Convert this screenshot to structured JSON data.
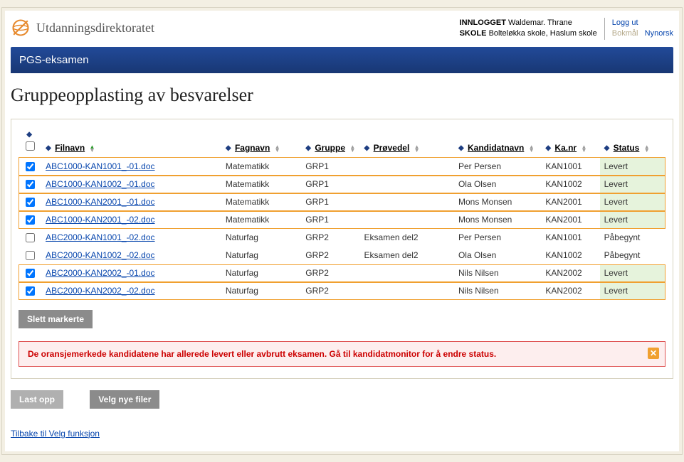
{
  "brand": "Utdanningsdirektoratet",
  "header": {
    "logged_in_label": "INNLOGGET",
    "user_name": "Waldemar. Thrane",
    "school_label": "SKOLE",
    "school_name": "Bolteløkka skole, Haslum skole",
    "logout": "Logg ut",
    "lang_active": "Bokmål",
    "lang_other": "Nynorsk"
  },
  "appbar_title": "PGS-eksamen",
  "page_title": "Gruppeopplasting av besvarelser",
  "columns": {
    "filnavn": "Filnavn",
    "fagnavn": "Fagnavn",
    "gruppe": "Gruppe",
    "provedel": "Prøvedel",
    "kandidatnavn": "Kandidatnavn",
    "kanr": "Ka.nr",
    "status": "Status"
  },
  "rows": [
    {
      "checked": true,
      "filnavn": "ABC1000-KAN1001_-01.doc",
      "fagnavn": "Matematikk",
      "gruppe": "GRP1",
      "provedel": "",
      "kandidat": "Per Persen",
      "kanr": "KAN1001",
      "status": "Levert"
    },
    {
      "checked": true,
      "filnavn": "ABC1000-KAN1002_-01.doc",
      "fagnavn": "Matematikk",
      "gruppe": "GRP1",
      "provedel": "",
      "kandidat": "Ola Olsen",
      "kanr": "KAN1002",
      "status": "Levert"
    },
    {
      "checked": true,
      "filnavn": "ABC1000-KAN2001_-01.doc",
      "fagnavn": "Matematikk",
      "gruppe": "GRP1",
      "provedel": "",
      "kandidat": "Mons Monsen",
      "kanr": "KAN2001",
      "status": "Levert"
    },
    {
      "checked": true,
      "filnavn": "ABC1000-KAN2001_-02.doc",
      "fagnavn": "Matematikk",
      "gruppe": "GRP1",
      "provedel": "",
      "kandidat": "Mons Monsen",
      "kanr": "KAN2001",
      "status": "Levert"
    },
    {
      "checked": false,
      "filnavn": "ABC2000-KAN1001_-02.doc",
      "fagnavn": "Naturfag",
      "gruppe": "GRP2",
      "provedel": "Eksamen del2",
      "kandidat": "Per Persen",
      "kanr": "KAN1001",
      "status": "Påbegynt"
    },
    {
      "checked": false,
      "filnavn": "ABC2000-KAN1002_-02.doc",
      "fagnavn": "Naturfag",
      "gruppe": "GRP2",
      "provedel": "Eksamen del2",
      "kandidat": "Ola Olsen",
      "kanr": "KAN1002",
      "status": "Påbegynt"
    },
    {
      "checked": true,
      "filnavn": "ABC2000-KAN2002_-01.doc",
      "fagnavn": "Naturfag",
      "gruppe": "GRP2",
      "provedel": "",
      "kandidat": "Nils Nilsen",
      "kanr": "KAN2002",
      "status": "Levert"
    },
    {
      "checked": true,
      "filnavn": "ABC2000-KAN2002_-02.doc",
      "fagnavn": "Naturfag",
      "gruppe": "GRP2",
      "provedel": "",
      "kandidat": "Nils Nilsen",
      "kanr": "KAN2002",
      "status": "Levert"
    }
  ],
  "buttons": {
    "delete_selected": "Slett markerte",
    "upload": "Last opp",
    "choose_new": "Velg nye filer"
  },
  "alert_text": "De oransjemerkede kandidatene har allerede levert eller avbrutt eksamen. Gå til kandidatmonitor for å endre status.",
  "back_link": "Tilbake til Velg funksjon",
  "colors": {
    "highlight_border": "#f0a030",
    "levert_bg": "#e6f3dc"
  }
}
